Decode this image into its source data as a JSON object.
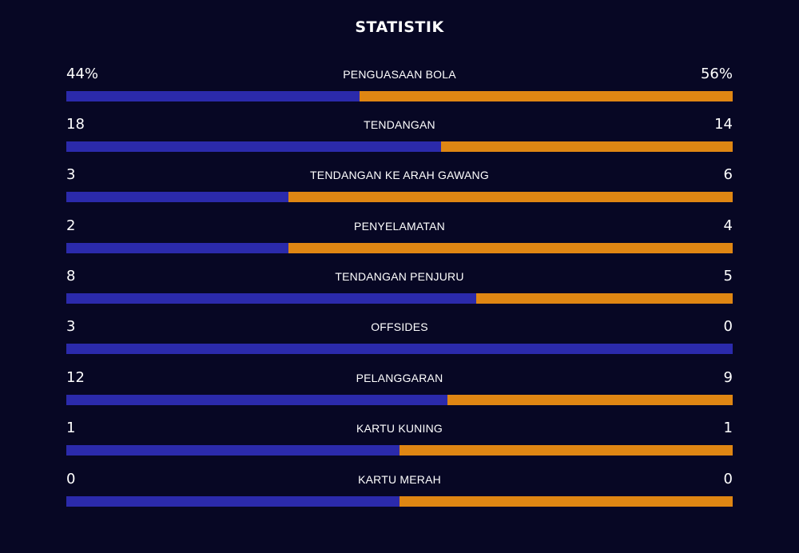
{
  "header": {
    "title": "STATISTIK"
  },
  "colors": {
    "background": "#070724",
    "home_bar": "#2b2aab",
    "away_bar": "#df8613",
    "text": "#ffffff"
  },
  "stats": [
    {
      "label": "PENGUASAAN BOLA",
      "home": "44%",
      "away": "56%",
      "home_value": 44,
      "away_value": 56
    },
    {
      "label": "TENDANGAN",
      "home": "18",
      "away": "14",
      "home_value": 18,
      "away_value": 14
    },
    {
      "label": "TENDANGAN KE ARAH GAWANG",
      "home": "3",
      "away": "6",
      "home_value": 3,
      "away_value": 6
    },
    {
      "label": "PENYELAMATAN",
      "home": "2",
      "away": "4",
      "home_value": 2,
      "away_value": 4
    },
    {
      "label": "TENDANGAN PENJURU",
      "home": "8",
      "away": "5",
      "home_value": 8,
      "away_value": 5
    },
    {
      "label": "OFFSIDES",
      "home": "3",
      "away": "0",
      "home_value": 3,
      "away_value": 0
    },
    {
      "label": "PELANGGARAN",
      "home": "12",
      "away": "9",
      "home_value": 12,
      "away_value": 9
    },
    {
      "label": "KARTU KUNING",
      "home": "1",
      "away": "1",
      "home_value": 1,
      "away_value": 1
    },
    {
      "label": "KARTU MERAH",
      "home": "0",
      "away": "0",
      "home_value": 0,
      "away_value": 0
    }
  ]
}
